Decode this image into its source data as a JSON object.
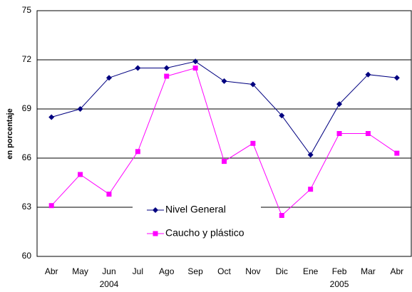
{
  "chart_data": {
    "type": "line",
    "y_label": "en porcentaje",
    "categories": [
      "Abr",
      "May",
      "Jun",
      "Jul",
      "Ago",
      "Sep",
      "Oct",
      "Nov",
      "Dic",
      "Ene",
      "Feb",
      "Mar",
      "Abr"
    ],
    "years": [
      "2004",
      "2005"
    ],
    "series": [
      {
        "name": "Nivel General",
        "color": "#000080",
        "marker": "diamond",
        "values": [
          68.5,
          69.0,
          70.9,
          71.5,
          71.5,
          71.9,
          70.7,
          70.5,
          68.6,
          66.2,
          69.3,
          71.1,
          70.9
        ]
      },
      {
        "name": "Caucho y plástico",
        "color": "#ff00ff",
        "marker": "square",
        "values": [
          63.1,
          65.0,
          63.8,
          66.4,
          71.0,
          71.5,
          65.8,
          66.9,
          62.5,
          64.1,
          67.5,
          67.5,
          66.3
        ]
      }
    ],
    "ylim": [
      60,
      75
    ],
    "yticks": [
      60,
      63,
      66,
      69,
      72,
      75
    ],
    "grid": true,
    "legend_position": "center"
  }
}
